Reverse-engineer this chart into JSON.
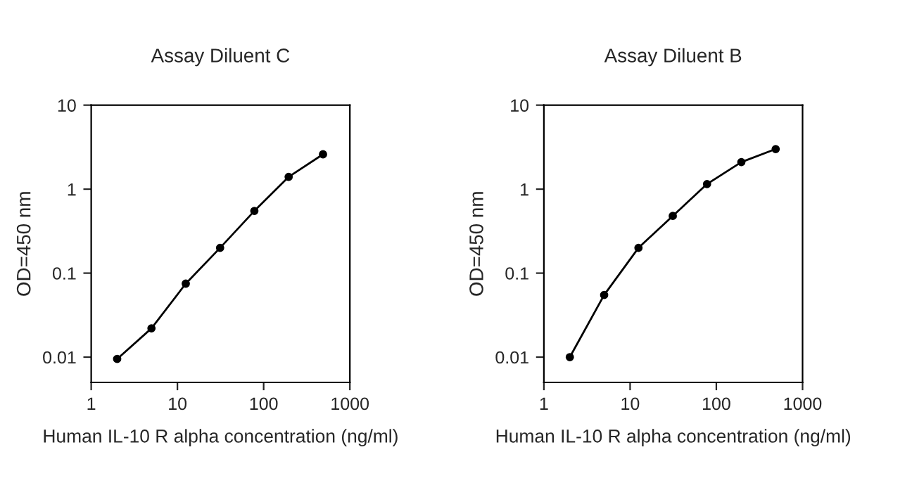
{
  "chart_data": [
    {
      "type": "line",
      "title": "Assay Diluent C",
      "xlabel": "Human IL-10 R alpha concentration (ng/ml)",
      "ylabel": "OD=450 nm",
      "log": "xy",
      "marker": "circle",
      "line_style": "solid",
      "grid": false,
      "legend": false,
      "xlim": [
        1,
        1000
      ],
      "xticks": [
        1,
        10,
        100,
        1000
      ],
      "ylim": [
        0.005,
        10
      ],
      "yticks": [
        0.01,
        0.1,
        1,
        10
      ],
      "x": [
        2,
        5,
        12.5,
        31.25,
        78,
        195,
        488
      ],
      "series": [
        {
          "color": "#000000",
          "values": [
            0.0095,
            0.022,
            0.075,
            0.2,
            0.55,
            1.4,
            2.6
          ]
        }
      ]
    },
    {
      "type": "line",
      "title": "Assay Diluent B",
      "xlabel": "Human IL-10 R alpha concentration (ng/ml)",
      "ylabel": "OD=450 nm",
      "log": "xy",
      "marker": "circle",
      "line_style": "solid",
      "grid": false,
      "legend": false,
      "xlim": [
        1,
        1000
      ],
      "xticks": [
        1,
        10,
        100,
        1000
      ],
      "ylim": [
        0.005,
        10
      ],
      "yticks": [
        0.01,
        0.1,
        1,
        10
      ],
      "x": [
        2,
        5,
        12.5,
        31.25,
        78,
        195,
        488
      ],
      "series": [
        {
          "color": "#000000",
          "values": [
            0.01,
            0.055,
            0.2,
            0.48,
            1.15,
            2.1,
            3.0
          ]
        }
      ]
    }
  ]
}
